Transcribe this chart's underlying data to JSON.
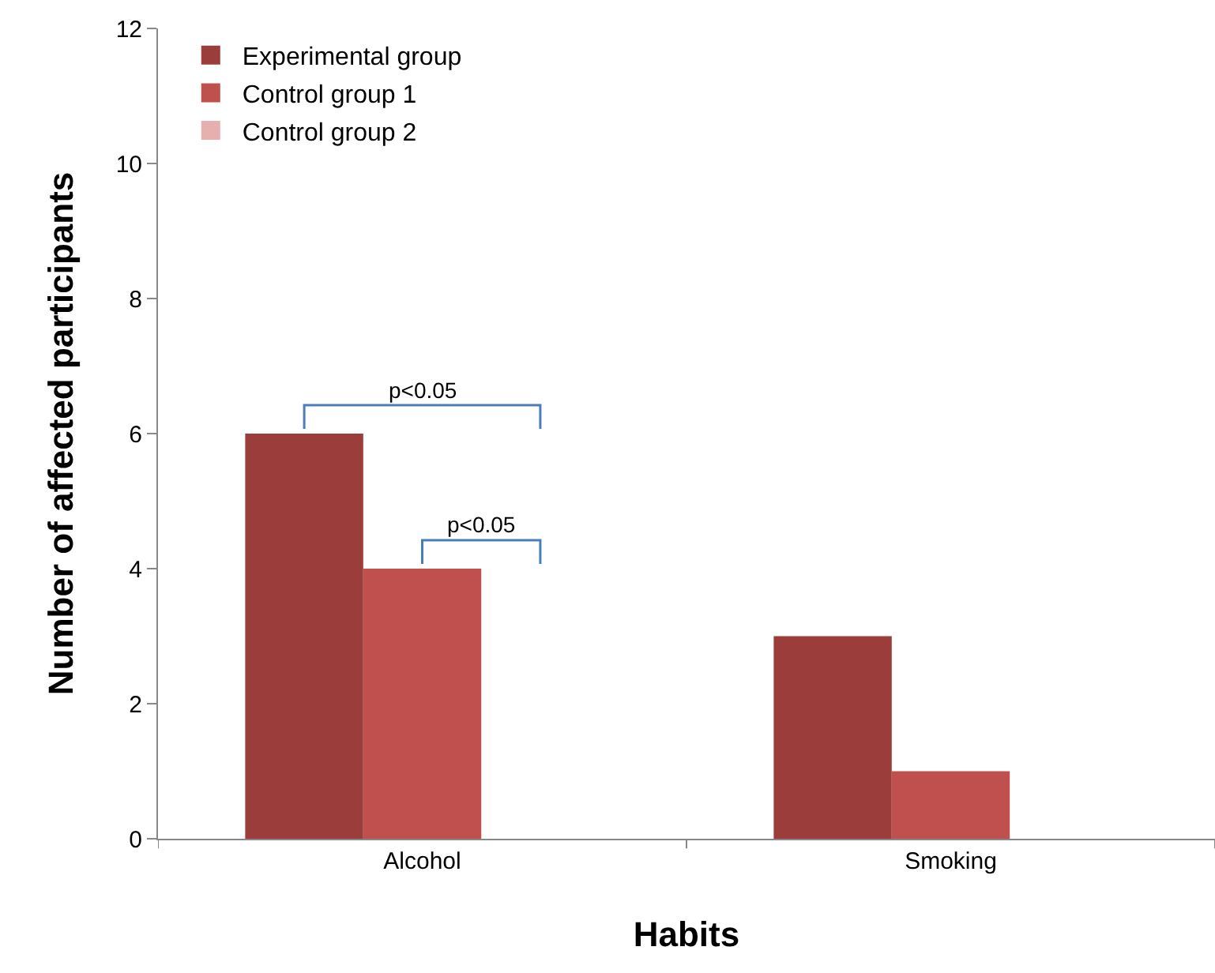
{
  "chart_data": {
    "type": "bar",
    "xlabel": "Habits",
    "ylabel": "Number of affected participants",
    "categories": [
      "Alcohol",
      "Smoking"
    ],
    "series": [
      {
        "name": "Experimental group",
        "color": "#9b3d3b",
        "values": [
          6,
          3
        ]
      },
      {
        "name": "Control group 1",
        "color": "#c0504d",
        "values": [
          4,
          1
        ]
      },
      {
        "name": "Control group 2",
        "color": "#e6b0ae",
        "values": [
          0,
          0
        ]
      }
    ],
    "ylim": [
      0,
      12
    ],
    "yticks": [
      0,
      2,
      4,
      6,
      8,
      10,
      12
    ],
    "grid": false,
    "legend": "top left",
    "annotations": [
      "p<0.05",
      "p<0.05"
    ]
  }
}
